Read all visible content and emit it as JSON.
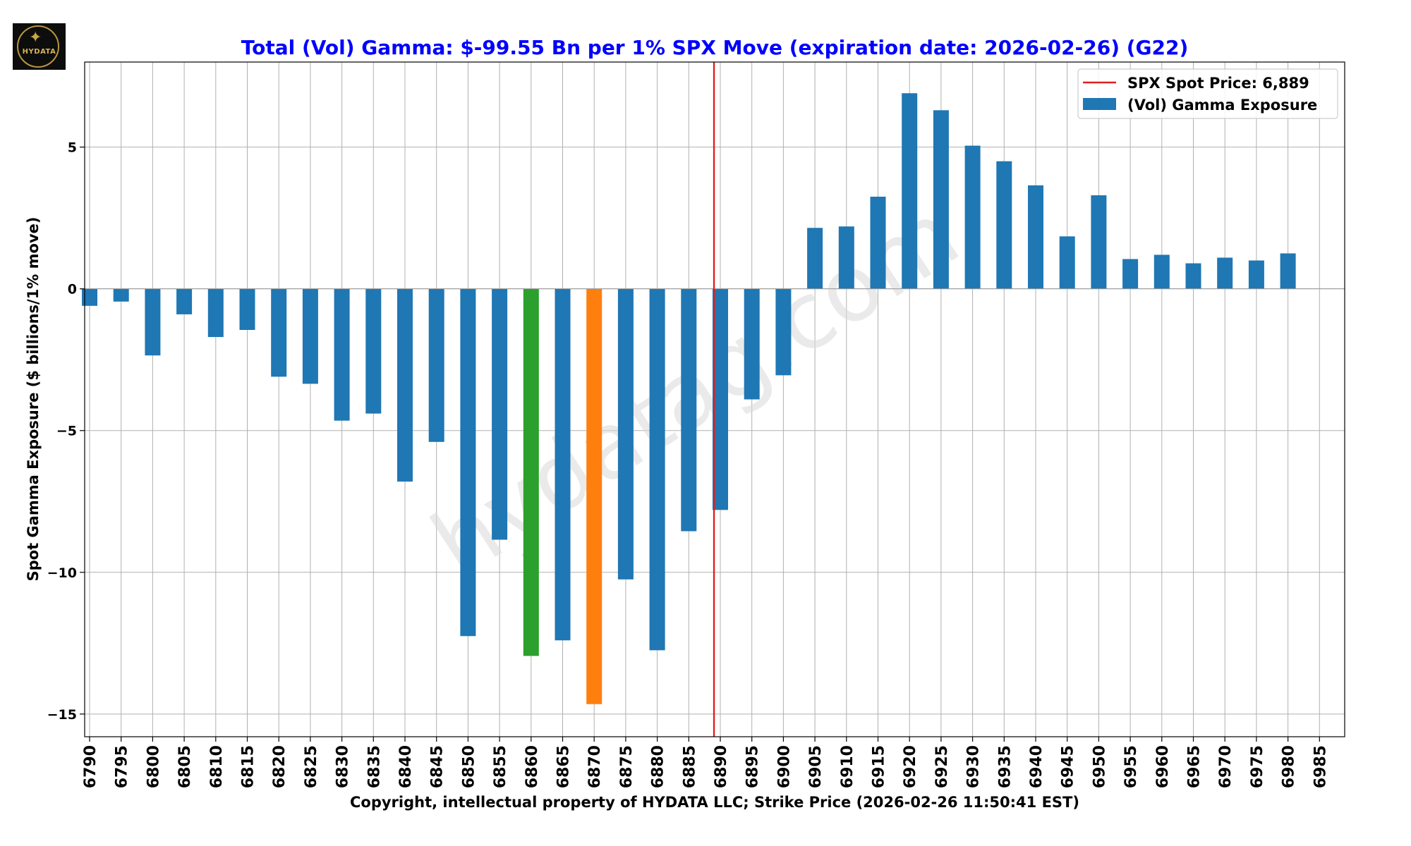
{
  "logo": {
    "text": "HYDATA",
    "icon": "wolf-icon"
  },
  "chart_data": {
    "type": "bar",
    "title": "Total (Vol) Gamma: $-99.55 Bn per 1% SPX Move (expiration date: 2026-02-26) (G22)",
    "xlabel": "Copyright, intellectual property of HYDATA LLC; Strike Price (2026-02-26 11:50:41 EST)",
    "ylabel": "Spot Gamma Exposure ($ billions/1% move)",
    "ylim": [
      -15.8,
      8.0
    ],
    "yticks": [
      5,
      0,
      -5,
      -10,
      -15
    ],
    "ytick_labels": [
      "5",
      "0",
      "−5",
      "−10",
      "−15"
    ],
    "grid": true,
    "legend_position": "top-right",
    "watermark": "hydatag.com",
    "spot": {
      "label": "SPX Spot Price: 6,889",
      "value": 6889,
      "color": "#e02020"
    },
    "series": [
      {
        "name": "(Vol) Gamma Exposure",
        "color": "#1f77b4",
        "highlight_colors": {
          "6860": "#2ca02c",
          "6870": "#ff7f0e"
        },
        "values": [
          -0.6,
          -0.45,
          -2.35,
          -0.9,
          -1.7,
          -1.45,
          -3.1,
          -3.35,
          -4.65,
          -4.4,
          -6.8,
          -5.4,
          -12.25,
          -8.85,
          -12.95,
          -12.4,
          -14.65,
          -10.25,
          -12.75,
          -8.55,
          -7.8,
          -3.9,
          -3.05,
          2.15,
          2.2,
          3.25,
          6.9,
          6.3,
          5.05,
          4.5,
          3.65,
          1.85,
          3.3,
          1.05,
          1.2,
          0.9,
          1.1,
          1.0,
          1.25,
          0
        ]
      }
    ],
    "categories": [
      "6790",
      "6795",
      "6800",
      "6805",
      "6810",
      "6815",
      "6820",
      "6825",
      "6830",
      "6835",
      "6840",
      "6845",
      "6850",
      "6855",
      "6860",
      "6865",
      "6870",
      "6875",
      "6880",
      "6885",
      "6890",
      "6895",
      "6900",
      "6905",
      "6910",
      "6915",
      "6920",
      "6925",
      "6930",
      "6935",
      "6940",
      "6945",
      "6950",
      "6955",
      "6960",
      "6965",
      "6970",
      "6975",
      "6980",
      "6985"
    ]
  }
}
